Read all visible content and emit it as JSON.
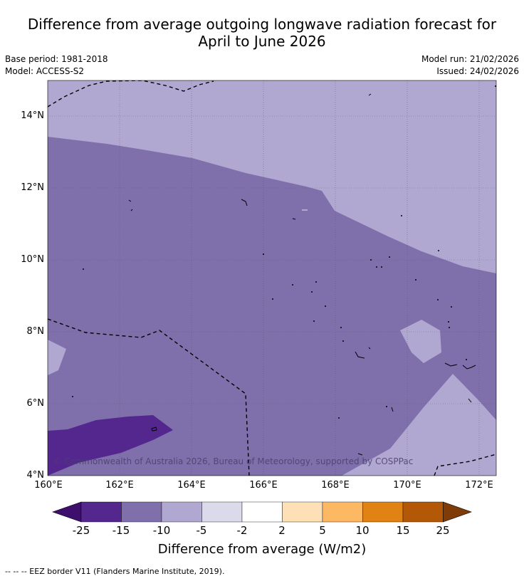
{
  "title_line1": "Difference from average outgoing longwave radiation forecast for",
  "title_line2": "April to June 2026",
  "meta_left": {
    "base_period": "Base period: 1981-2018",
    "model": "Model: ACCESS-S2"
  },
  "meta_right": {
    "model_run": "Model run: 21/02/2026",
    "issued": "Issued: 24/02/2026"
  },
  "map": {
    "lat_ticks": [
      "14°N",
      "12°N",
      "10°N",
      "8°N",
      "6°N",
      "4°N"
    ],
    "lon_ticks": [
      "160°E",
      "162°E",
      "164°E",
      "166°E",
      "168°E",
      "170°E",
      "172°E"
    ],
    "credit": "© Commonwealth of Australia 2026, Bureau of Meteorology, supported by COSPPac"
  },
  "colorbar": {
    "ticks": [
      "-25",
      "-15",
      "-10",
      "-5",
      "-2",
      "2",
      "5",
      "10",
      "15",
      "25"
    ],
    "colors": [
      "#3f0f6e",
      "#54278f",
      "#7f70ac",
      "#b0a8d1",
      "#dadaeb",
      "#ffffff",
      "#fee0b6",
      "#fdb863",
      "#e08214",
      "#b35806",
      "#7f3b08"
    ],
    "label": "Difference from average (W/m2)"
  },
  "footer": "--  --  -- EEZ border V11 (Flanders Marine Institute, 2019)."
}
